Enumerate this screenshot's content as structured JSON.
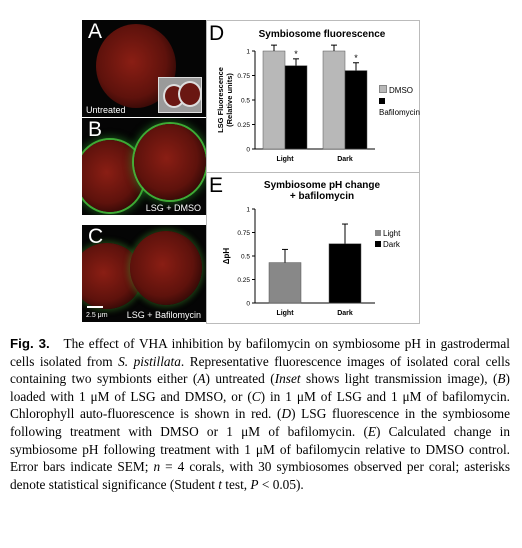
{
  "panels": {
    "A": {
      "letter": "A",
      "caption": "Untreated"
    },
    "B": {
      "letter": "B",
      "caption": "LSG + DMSO"
    },
    "C": {
      "letter": "C",
      "caption": "LSG + Bafilomycin",
      "scalebar": "2.5 μm"
    }
  },
  "colors": {
    "dmso": "#b8b8b8",
    "bafilomycin": "#000000",
    "light": "#888888",
    "dark": "#000000"
  },
  "chart_data": [
    {
      "panel": "D",
      "type": "bar",
      "title": "Symbiosome fluorescence",
      "ylabel_line1": "LSG Fluorescence",
      "ylabel_line2": "(Relative units)",
      "categories": [
        "Light",
        "Dark"
      ],
      "ylim": [
        0,
        1
      ],
      "yticks": [
        "0",
        "0.25",
        "0.5",
        "0.75",
        "1"
      ],
      "series": [
        {
          "name": "DMSO",
          "values": [
            1.0,
            1.0
          ],
          "errors": [
            0.06,
            0.06
          ]
        },
        {
          "name": "Bafilomycin",
          "values": [
            0.85,
            0.8
          ],
          "errors": [
            0.07,
            0.08
          ]
        }
      ],
      "annotations": [
        "*",
        "*"
      ],
      "legend": "right"
    },
    {
      "panel": "E",
      "type": "bar",
      "title_line1": "Symbiosome pH change",
      "title_line2": "+ bafilomycin",
      "ylabel": "ΔpH",
      "categories": [
        "Light",
        "Dark"
      ],
      "ylim": [
        0,
        1
      ],
      "yticks": [
        "0",
        "0.25",
        "0.5",
        "0.75",
        "1"
      ],
      "values": [
        0.43,
        0.63
      ],
      "errors": [
        0.14,
        0.21
      ],
      "legend_entries": [
        "Light",
        "Dark"
      ],
      "legend": "right"
    }
  ],
  "caption": {
    "fig_label": "Fig. 3.",
    "title": "The effect of VHA inhibition by bafilomycin on symbiosome pH in gastrodermal cells isolated from",
    "species": "S. pistillata",
    "body_1": ". Representative fluorescence images of isolated coral cells containing two symbionts either (",
    "A": "A",
    "body_2": ") untreated (",
    "inset": "Inset",
    "body_3": " shows light transmission image), (",
    "B": "B",
    "body_4": ") loaded with 1 μM of LSG and DMSO, or (",
    "C": "C",
    "body_5": ") in 1 μM of LSG and 1 μM of bafilomycin. Chlorophyll auto-fluorescence is shown in red. (",
    "D": "D",
    "body_6": ") LSG fluorescence in the symbiosome following treatment with DMSO or 1 μM of bafilomycin. (",
    "E": "E",
    "body_7": ") Calculated change in symbiosome pH following treatment with 1 μM of bafilomycin relative to DMSO control. Error bars indicate SEM; ",
    "n": "n",
    "body_8": " = 4 corals, with 30 symbiosomes observed per coral; asterisks denote statistical significance (Student ",
    "t": "t",
    "body_9": " test, ",
    "P": "P",
    "body_10": " < 0.05)."
  }
}
